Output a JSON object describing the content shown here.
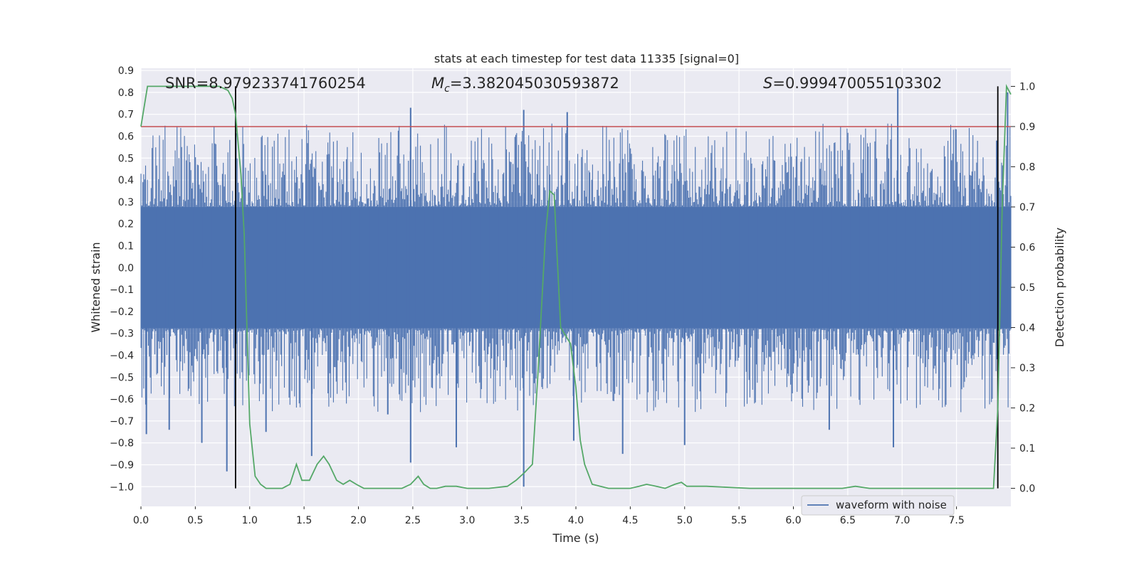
{
  "chart_data": {
    "type": "line",
    "title": "stats at each timestep for test data 11335 [signal=0]",
    "xlabel": "Time (s)",
    "ylabel": "Whitened strain",
    "y2label": "Detection probability",
    "xlim": [
      0.0,
      8.0
    ],
    "ylim": [
      -1.09,
      0.91
    ],
    "y2lim": [
      -0.045,
      1.045
    ],
    "xticks": [
      "0.0",
      "0.5",
      "1.0",
      "1.5",
      "2.0",
      "2.5",
      "3.0",
      "3.5",
      "4.0",
      "4.5",
      "5.0",
      "5.5",
      "6.0",
      "6.5",
      "7.0",
      "7.5"
    ],
    "yticks": [
      "0.9",
      "0.8",
      "0.7",
      "0.6",
      "0.5",
      "0.4",
      "0.3",
      "0.2",
      "0.1",
      "0.0",
      "−0.1",
      "−0.2",
      "−0.3",
      "−0.4",
      "−0.5",
      "−0.6",
      "−0.7",
      "−0.8",
      "−0.9",
      "−1.0"
    ],
    "y2ticks": [
      "1.0",
      "0.9",
      "0.8",
      "0.7",
      "0.6",
      "0.5",
      "0.4",
      "0.3",
      "0.2",
      "0.1",
      "0.0"
    ],
    "grid": true,
    "legend_position": "bottom-right",
    "annotations": {
      "snr": "SNR=8.979233741760254",
      "mc_symbol": "M",
      "mc_sub": "c",
      "mc_value": "=3.382045030593872",
      "s_symbol": "S",
      "s_value": "=0.999470055103302"
    },
    "threshold_prob": 0.9,
    "vlines_time": [
      0.87,
      7.88
    ],
    "series": [
      {
        "name": "waveform with noise",
        "color": "#4c72b0",
        "axis": "left",
        "envelope_upper": 0.5,
        "envelope_lower": -0.5,
        "spike_peaks": [
          {
            "t": 0.05,
            "v": -0.76
          },
          {
            "t": 0.26,
            "v": -0.74
          },
          {
            "t": 0.56,
            "v": -0.8
          },
          {
            "t": 0.79,
            "v": -0.93
          },
          {
            "t": 1.15,
            "v": -0.75
          },
          {
            "t": 1.57,
            "v": -0.86
          },
          {
            "t": 2.27,
            "v": -0.67
          },
          {
            "t": 2.48,
            "v": -0.89
          },
          {
            "t": 2.48,
            "v": 0.73
          },
          {
            "t": 2.9,
            "v": -0.82
          },
          {
            "t": 3.52,
            "v": -1.0
          },
          {
            "t": 3.52,
            "v": 0.72
          },
          {
            "t": 3.92,
            "v": 0.71
          },
          {
            "t": 3.98,
            "v": -0.79
          },
          {
            "t": 4.43,
            "v": -0.85
          },
          {
            "t": 5.0,
            "v": -0.81
          },
          {
            "t": 6.33,
            "v": -0.74
          },
          {
            "t": 6.92,
            "v": -0.82
          },
          {
            "t": 6.96,
            "v": 0.82
          },
          {
            "t": 7.87,
            "v": 0.58
          },
          {
            "t": 7.97,
            "v": 0.8
          }
        ]
      },
      {
        "name": "",
        "color": "#55a868",
        "axis": "right",
        "x": [
          0.0,
          0.06,
          0.2,
          0.4,
          0.6,
          0.72,
          0.8,
          0.84,
          0.87,
          0.92,
          0.95,
          1.0,
          1.05,
          1.1,
          1.15,
          1.2,
          1.3,
          1.37,
          1.43,
          1.48,
          1.55,
          1.62,
          1.68,
          1.73,
          1.8,
          1.86,
          1.92,
          1.98,
          2.05,
          2.2,
          2.4,
          2.48,
          2.55,
          2.6,
          2.66,
          2.72,
          2.8,
          2.9,
          3.0,
          3.2,
          3.37,
          3.45,
          3.53,
          3.6,
          3.65,
          3.72,
          3.76,
          3.8,
          3.86,
          3.95,
          4.0,
          4.04,
          4.08,
          4.15,
          4.3,
          4.5,
          4.58,
          4.65,
          4.74,
          4.82,
          4.91,
          4.97,
          5.02,
          5.2,
          5.6,
          6.0,
          6.45,
          6.57,
          6.7,
          7.2,
          7.6,
          7.8,
          7.84,
          7.88,
          7.92,
          7.96,
          8.0
        ],
        "values": [
          0.9,
          1.0,
          1.0,
          1.0,
          1.0,
          1.0,
          0.99,
          0.97,
          0.93,
          0.78,
          0.63,
          0.16,
          0.03,
          0.01,
          0.0,
          0.0,
          0.0,
          0.01,
          0.06,
          0.02,
          0.02,
          0.06,
          0.08,
          0.06,
          0.02,
          0.01,
          0.02,
          0.01,
          0.0,
          0.0,
          0.0,
          0.01,
          0.03,
          0.01,
          0.0,
          0.0,
          0.005,
          0.005,
          0.0,
          0.0,
          0.005,
          0.02,
          0.04,
          0.06,
          0.28,
          0.63,
          0.74,
          0.73,
          0.4,
          0.36,
          0.25,
          0.12,
          0.06,
          0.01,
          0.0,
          0.0,
          0.005,
          0.01,
          0.005,
          0.0,
          0.01,
          0.015,
          0.005,
          0.005,
          0.0,
          0.0,
          0.0,
          0.005,
          0.0,
          0.0,
          0.0,
          0.0,
          0.0,
          0.2,
          0.7,
          1.0,
          0.98
        ]
      }
    ]
  }
}
